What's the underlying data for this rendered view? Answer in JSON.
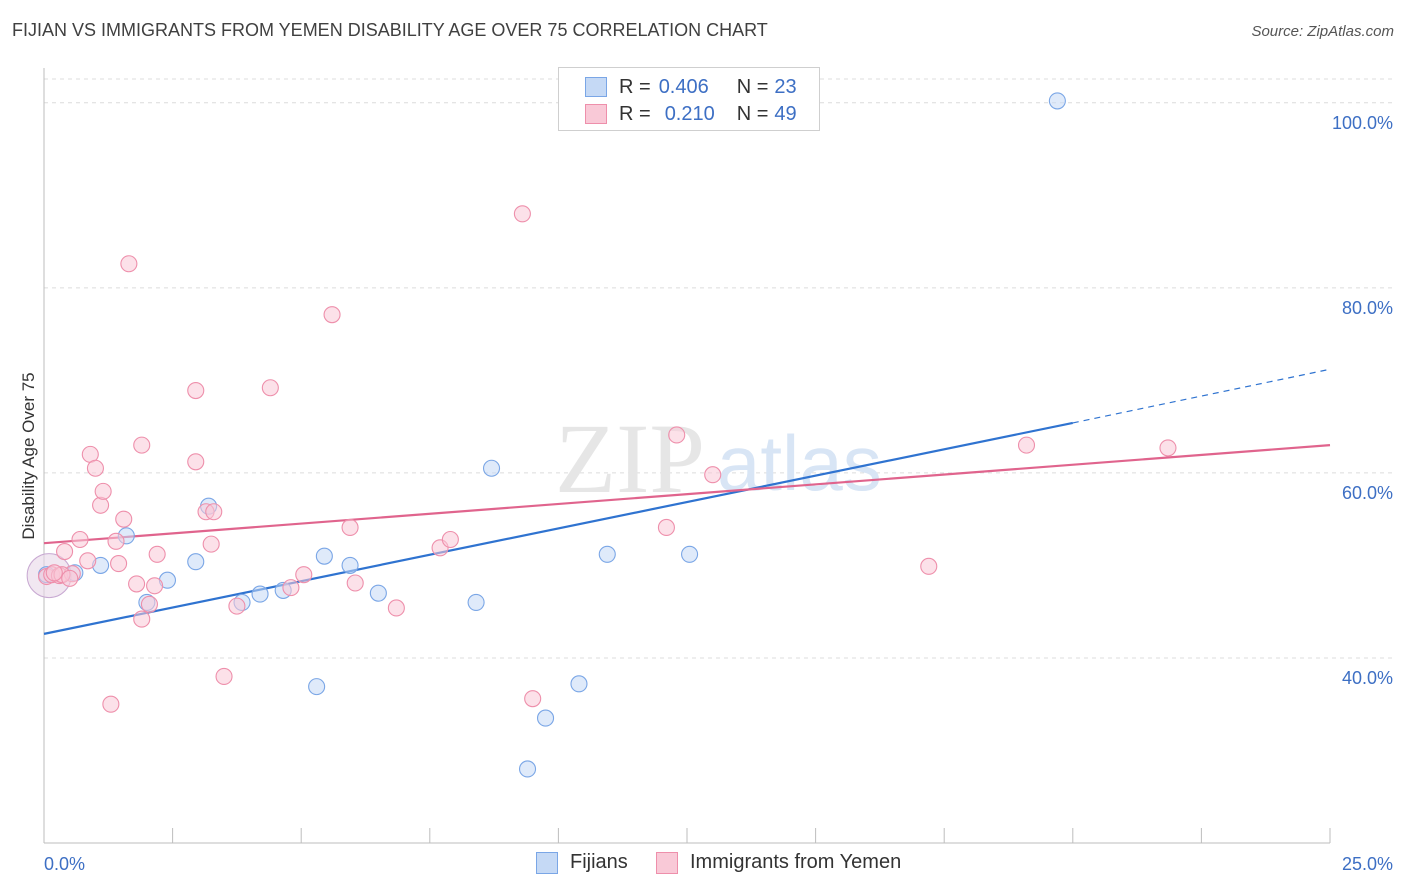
{
  "chart_data": {
    "type": "scatter",
    "title": "FIJIAN VS IMMIGRANTS FROM YEMEN DISABILITY AGE OVER 75 CORRELATION CHART",
    "source": "Source: ZipAtlas.com",
    "xlabel": "",
    "ylabel": "Disability Age Over 75",
    "xlim": [
      0,
      25
    ],
    "ylim": [
      20,
      103
    ],
    "x_tick_labels": [
      "0.0%",
      "25.0%"
    ],
    "y_tick_values": [
      40,
      60,
      80,
      100
    ],
    "y_tick_labels": [
      "40.0%",
      "60.0%",
      "80.0%",
      "100.0%"
    ],
    "watermark": "ZIPatlas",
    "legend": [
      {
        "r_label": "R = ",
        "r_value": "0.406",
        "n_label": "N = ",
        "n_value": "23"
      },
      {
        "r_label": "R = ",
        "r_value": "0.210",
        "n_label": "N = ",
        "n_value": "49"
      }
    ],
    "series": [
      {
        "name": "Fijians",
        "color": "#7aa6e6",
        "fill": "#c5d9f5",
        "line_color": "#2f73d0",
        "trend": {
          "x0": 0,
          "y0": 42.6,
          "x1": 20,
          "y1": 65.4,
          "dash_to_x": 25,
          "dash_to_y": 71.2
        },
        "points": [
          [
            0.05,
            49.0
          ],
          [
            0.6,
            49.2
          ],
          [
            1.1,
            50.0
          ],
          [
            1.6,
            53.2
          ],
          [
            2.0,
            46.0
          ],
          [
            2.4,
            48.4
          ],
          [
            2.95,
            50.4
          ],
          [
            3.2,
            56.4
          ],
          [
            3.85,
            46.0
          ],
          [
            4.2,
            46.9
          ],
          [
            4.65,
            47.3
          ],
          [
            5.3,
            36.9
          ],
          [
            5.45,
            51.0
          ],
          [
            5.95,
            50.0
          ],
          [
            6.5,
            47.0
          ],
          [
            8.4,
            46.0
          ],
          [
            8.7,
            60.5
          ],
          [
            9.4,
            28.0
          ],
          [
            9.75,
            33.5
          ],
          [
            10.4,
            37.2
          ],
          [
            10.95,
            51.2
          ],
          [
            12.55,
            51.2
          ],
          [
            19.7,
            100.2
          ]
        ]
      },
      {
        "name": "Immigrants from Yemen",
        "color": "#ee8fab",
        "fill": "#f9c9d7",
        "line_color": "#e0648d",
        "trend": {
          "x0": 0,
          "y0": 52.4,
          "x1": 25,
          "y1": 63.0
        },
        "points": [
          [
            0.05,
            48.8
          ],
          [
            0.15,
            49.0
          ],
          [
            0.3,
            48.9
          ],
          [
            0.4,
            51.5
          ],
          [
            0.55,
            49.1
          ],
          [
            0.7,
            52.8
          ],
          [
            0.85,
            50.5
          ],
          [
            0.9,
            62.0
          ],
          [
            1.0,
            60.5
          ],
          [
            1.1,
            56.5
          ],
          [
            1.15,
            58.0
          ],
          [
            1.3,
            35.0
          ],
          [
            1.4,
            52.6
          ],
          [
            1.45,
            50.2
          ],
          [
            1.55,
            55.0
          ],
          [
            1.65,
            82.6
          ],
          [
            1.8,
            48.0
          ],
          [
            1.9,
            63.0
          ],
          [
            1.9,
            44.2
          ],
          [
            2.05,
            45.8
          ],
          [
            2.15,
            47.8
          ],
          [
            2.2,
            51.2
          ],
          [
            2.95,
            68.9
          ],
          [
            2.95,
            61.2
          ],
          [
            3.15,
            55.8
          ],
          [
            3.25,
            52.3
          ],
          [
            3.3,
            55.8
          ],
          [
            3.5,
            38.0
          ],
          [
            3.75,
            45.6
          ],
          [
            4.4,
            69.2
          ],
          [
            4.8,
            47.6
          ],
          [
            5.05,
            49.0
          ],
          [
            5.6,
            77.1
          ],
          [
            5.95,
            54.1
          ],
          [
            6.05,
            48.1
          ],
          [
            6.85,
            45.4
          ],
          [
            7.7,
            51.9
          ],
          [
            7.9,
            52.8
          ],
          [
            9.3,
            88.0
          ],
          [
            9.5,
            35.6
          ],
          [
            12.1,
            54.1
          ],
          [
            12.3,
            64.1
          ],
          [
            13.0,
            59.8
          ],
          [
            17.2,
            49.9
          ],
          [
            19.1,
            63.0
          ],
          [
            21.85,
            62.7
          ],
          [
            0.35,
            49.0
          ],
          [
            0.5,
            48.6
          ],
          [
            0.2,
            49.2
          ]
        ]
      }
    ]
  },
  "legend_bottom": [
    {
      "label": "Fijians"
    },
    {
      "label": "Immigrants from Yemen"
    }
  ]
}
